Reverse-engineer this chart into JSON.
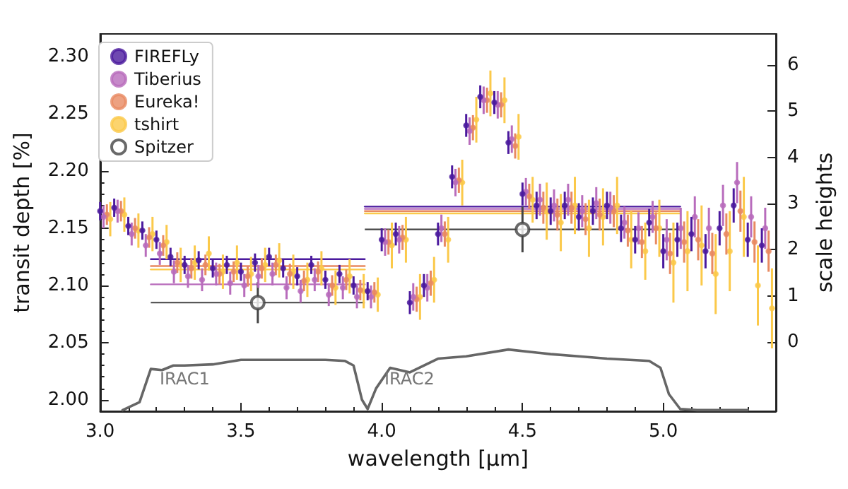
{
  "chart_data": {
    "type": "scatter",
    "xlabel": "wavelength [μm]",
    "ylabel": "transit depth [%]",
    "y2label": "scale heights",
    "xlim": [
      3.0,
      5.4
    ],
    "ylim": [
      1.99,
      2.32
    ],
    "y2lim": [
      -1.5,
      6.67
    ],
    "xticks": [
      {
        "value": 3,
        "label": "3.0"
      },
      {
        "value": 3.5,
        "label": "3.5"
      },
      {
        "value": 4,
        "label": "4.0"
      },
      {
        "value": 4.5,
        "label": "4.5"
      },
      {
        "value": 5,
        "label": "5.0"
      }
    ],
    "yticks": [
      {
        "value": 2,
        "label": "2.00"
      },
      {
        "value": 2.05,
        "label": "2.05"
      },
      {
        "value": 2.1,
        "label": "2.10"
      },
      {
        "value": 2.15,
        "label": "2.15"
      },
      {
        "value": 2.2,
        "label": "2.20"
      },
      {
        "value": 2.25,
        "label": "2.25"
      },
      {
        "value": 2.3,
        "label": "2.30"
      }
    ],
    "y2ticks": [
      0,
      1,
      2,
      3,
      4,
      5,
      6
    ],
    "grid": false,
    "legend": "top left",
    "marker": "circle",
    "series": [
      {
        "name": "FIREFLy",
        "color": "#4b1a9e",
        "x": [
          3.0,
          3.05,
          3.1,
          3.15,
          3.2,
          3.25,
          3.3,
          3.35,
          3.4,
          3.45,
          3.5,
          3.55,
          3.6,
          3.65,
          3.7,
          3.75,
          3.8,
          3.85,
          3.9,
          3.95,
          4.0,
          4.05,
          4.1,
          4.15,
          4.2,
          4.25,
          4.3,
          4.35,
          4.4,
          4.45,
          4.5,
          4.55,
          4.6,
          4.65,
          4.7,
          4.75,
          4.8,
          4.85,
          4.9,
          4.95,
          5.0,
          5.05,
          5.1,
          5.15,
          5.2,
          5.25,
          5.3,
          5.35
        ],
        "values": [
          2.165,
          2.168,
          2.152,
          2.148,
          2.14,
          2.125,
          2.118,
          2.122,
          2.115,
          2.118,
          2.112,
          2.12,
          2.125,
          2.115,
          2.108,
          2.118,
          2.105,
          2.11,
          2.1,
          2.095,
          2.14,
          2.145,
          2.085,
          2.1,
          2.145,
          2.195,
          2.24,
          2.265,
          2.26,
          2.225,
          2.18,
          2.17,
          2.165,
          2.17,
          2.16,
          2.165,
          2.17,
          2.15,
          2.14,
          2.155,
          2.13,
          2.14,
          2.145,
          2.13,
          2.15,
          2.17,
          2.14,
          2.135
        ],
        "errors": [
          0.008,
          0.008,
          0.008,
          0.008,
          0.008,
          0.008,
          0.008,
          0.008,
          0.008,
          0.008,
          0.008,
          0.008,
          0.008,
          0.008,
          0.008,
          0.008,
          0.008,
          0.008,
          0.008,
          0.008,
          0.01,
          0.01,
          0.01,
          0.01,
          0.01,
          0.01,
          0.01,
          0.01,
          0.01,
          0.01,
          0.01,
          0.012,
          0.012,
          0.012,
          0.012,
          0.012,
          0.012,
          0.012,
          0.012,
          0.012,
          0.015,
          0.015,
          0.015,
          0.015,
          0.015,
          0.015,
          0.015,
          0.015
        ]
      },
      {
        "name": "Tiberius",
        "color": "#b86cbc",
        "x": [
          3.012,
          3.062,
          3.112,
          3.162,
          3.212,
          3.262,
          3.312,
          3.362,
          3.412,
          3.462,
          3.512,
          3.562,
          3.612,
          3.662,
          3.712,
          3.762,
          3.812,
          3.862,
          3.912,
          3.962,
          4.012,
          4.062,
          4.112,
          4.162,
          4.212,
          4.262,
          4.312,
          4.362,
          4.412,
          4.462,
          4.512,
          4.562,
          4.612,
          4.662,
          4.712,
          4.762,
          4.812,
          4.862,
          4.912,
          4.962,
          5.012,
          5.062,
          5.112,
          5.162,
          5.212,
          5.262,
          5.312,
          5.362
        ],
        "values": [
          2.16,
          2.165,
          2.145,
          2.135,
          2.128,
          2.112,
          2.108,
          2.105,
          2.11,
          2.102,
          2.1,
          2.108,
          2.11,
          2.098,
          2.095,
          2.105,
          2.092,
          2.098,
          2.09,
          2.09,
          2.138,
          2.14,
          2.09,
          2.098,
          2.15,
          2.19,
          2.235,
          2.262,
          2.258,
          2.228,
          2.182,
          2.175,
          2.17,
          2.175,
          2.165,
          2.172,
          2.168,
          2.155,
          2.15,
          2.16,
          2.14,
          2.15,
          2.16,
          2.15,
          2.17,
          2.19,
          2.16,
          2.15
        ],
        "errors": [
          0.01,
          0.01,
          0.01,
          0.01,
          0.01,
          0.01,
          0.01,
          0.01,
          0.01,
          0.01,
          0.01,
          0.01,
          0.01,
          0.01,
          0.01,
          0.01,
          0.01,
          0.01,
          0.01,
          0.01,
          0.012,
          0.012,
          0.012,
          0.012,
          0.012,
          0.012,
          0.012,
          0.012,
          0.012,
          0.012,
          0.012,
          0.014,
          0.014,
          0.014,
          0.014,
          0.014,
          0.014,
          0.014,
          0.014,
          0.014,
          0.018,
          0.018,
          0.018,
          0.018,
          0.018,
          0.018,
          0.018,
          0.018
        ]
      },
      {
        "name": "Eureka!",
        "color": "#e88a62",
        "x": [
          3.024,
          3.074,
          3.124,
          3.174,
          3.224,
          3.274,
          3.324,
          3.374,
          3.424,
          3.474,
          3.524,
          3.574,
          3.624,
          3.674,
          3.724,
          3.774,
          3.824,
          3.874,
          3.924,
          3.974,
          4.024,
          4.074,
          4.124,
          4.174,
          4.224,
          4.274,
          4.324,
          4.374,
          4.424,
          4.474,
          4.524,
          4.574,
          4.624,
          4.674,
          4.724,
          4.774,
          4.824,
          4.874,
          4.924,
          4.974,
          5.024,
          5.074,
          5.124,
          5.174,
          5.224,
          5.274,
          5.324,
          5.374
        ],
        "values": [
          2.162,
          2.165,
          2.15,
          2.142,
          2.135,
          2.12,
          2.115,
          2.118,
          2.11,
          2.112,
          2.108,
          2.115,
          2.118,
          2.11,
          2.104,
          2.112,
          2.1,
          2.105,
          2.096,
          2.094,
          2.138,
          2.142,
          2.088,
          2.102,
          2.145,
          2.192,
          2.238,
          2.262,
          2.258,
          2.222,
          2.178,
          2.168,
          2.162,
          2.168,
          2.158,
          2.162,
          2.165,
          2.148,
          2.138,
          2.15,
          2.128,
          2.138,
          2.14,
          2.128,
          2.145,
          2.165,
          2.138,
          2.13
        ],
        "errors": [
          0.009,
          0.009,
          0.009,
          0.009,
          0.009,
          0.009,
          0.009,
          0.009,
          0.009,
          0.009,
          0.009,
          0.009,
          0.009,
          0.009,
          0.009,
          0.009,
          0.009,
          0.009,
          0.009,
          0.009,
          0.011,
          0.011,
          0.011,
          0.011,
          0.011,
          0.011,
          0.011,
          0.011,
          0.011,
          0.011,
          0.011,
          0.014,
          0.014,
          0.014,
          0.014,
          0.014,
          0.014,
          0.014,
          0.014,
          0.014,
          0.018,
          0.018,
          0.018,
          0.018,
          0.018,
          0.018,
          0.018,
          0.018
        ]
      },
      {
        "name": "tshirt",
        "color": "#fbc94a",
        "x": [
          3.036,
          3.086,
          3.136,
          3.186,
          3.236,
          3.286,
          3.336,
          3.386,
          3.436,
          3.486,
          3.536,
          3.586,
          3.636,
          3.686,
          3.736,
          3.786,
          3.836,
          3.886,
          3.936,
          3.986,
          4.036,
          4.086,
          4.136,
          4.186,
          4.236,
          4.286,
          4.336,
          4.386,
          4.436,
          4.486,
          4.536,
          4.586,
          4.636,
          4.686,
          4.736,
          4.786,
          4.836,
          4.886,
          4.936,
          4.986,
          5.036,
          5.086,
          5.136,
          5.186,
          5.236,
          5.286,
          5.336,
          5.386
        ],
        "values": [
          2.158,
          2.162,
          2.148,
          2.145,
          2.138,
          2.118,
          2.12,
          2.128,
          2.112,
          2.12,
          2.11,
          2.118,
          2.122,
          2.112,
          2.105,
          2.115,
          2.098,
          2.108,
          2.095,
          2.092,
          2.135,
          2.14,
          2.09,
          2.105,
          2.14,
          2.19,
          2.245,
          2.268,
          2.262,
          2.23,
          2.175,
          2.165,
          2.155,
          2.17,
          2.15,
          2.16,
          2.17,
          2.14,
          2.13,
          2.15,
          2.12,
          2.13,
          2.135,
          2.11,
          2.13,
          2.16,
          2.1,
          2.08
        ],
        "errors": [
          0.015,
          0.015,
          0.015,
          0.015,
          0.015,
          0.015,
          0.015,
          0.015,
          0.015,
          0.015,
          0.015,
          0.015,
          0.015,
          0.015,
          0.015,
          0.015,
          0.015,
          0.015,
          0.015,
          0.015,
          0.02,
          0.02,
          0.02,
          0.02,
          0.02,
          0.02,
          0.02,
          0.02,
          0.02,
          0.02,
          0.02,
          0.025,
          0.025,
          0.025,
          0.025,
          0.025,
          0.025,
          0.025,
          0.025,
          0.025,
          0.035,
          0.035,
          0.035,
          0.035,
          0.035,
          0.035,
          0.035,
          0.035
        ]
      },
      {
        "name": "Spitzer",
        "color": "#444444",
        "x": [
          3.56,
          4.5
        ],
        "values": [
          2.085,
          2.149
        ],
        "errors": [
          0.018,
          0.02
        ],
        "xerrors": [
          0.38,
          0.56
        ]
      },
      {
        "type": "line",
        "color": "#4b1a9e",
        "marker": "none",
        "line_style": "solid",
        "x": [
          3.18,
          3.94
        ],
        "values": [
          2.123,
          2.123
        ]
      },
      {
        "type": "line",
        "color": "#b86cbc",
        "marker": "none",
        "line_style": "solid",
        "x": [
          3.18,
          3.94
        ],
        "values": [
          2.101,
          2.101
        ]
      },
      {
        "type": "line",
        "color": "#e88a62",
        "marker": "none",
        "line_style": "solid",
        "x": [
          3.18,
          3.94
        ],
        "values": [
          2.117,
          2.117
        ]
      },
      {
        "type": "line",
        "color": "#fbc94a",
        "marker": "none",
        "line_style": "solid",
        "x": [
          3.18,
          3.94
        ],
        "values": [
          2.114,
          2.114
        ]
      },
      {
        "type": "line",
        "color": "#4b1a9e",
        "marker": "none",
        "line_style": "solid",
        "x": [
          3.94,
          5.06
        ],
        "values": [
          2.169,
          2.169
        ]
      },
      {
        "type": "line",
        "color": "#b86cbc",
        "marker": "none",
        "line_style": "solid",
        "x": [
          3.94,
          5.06
        ],
        "values": [
          2.167,
          2.167
        ]
      },
      {
        "type": "line",
        "color": "#e88a62",
        "marker": "none",
        "line_style": "solid",
        "x": [
          3.94,
          5.06
        ],
        "values": [
          2.165,
          2.165
        ]
      },
      {
        "type": "line",
        "color": "#fbc94a",
        "marker": "none",
        "line_style": "solid",
        "x": [
          3.94,
          5.06
        ],
        "values": [
          2.163,
          2.163
        ]
      },
      {
        "type": "line",
        "color": "#666666",
        "marker": "none",
        "line_style": "solid",
        "x": [
          3.08,
          3.14,
          3.18,
          3.22,
          3.26,
          3.3,
          3.4,
          3.5,
          3.6,
          3.7,
          3.8,
          3.87,
          3.9,
          3.93,
          3.95,
          3.98,
          4.03,
          4.1,
          4.2,
          4.3,
          4.45,
          4.6,
          4.7,
          4.8,
          4.95,
          4.99,
          5.02,
          5.06,
          5.12,
          5.3
        ],
        "values": [
          1.991,
          1.998,
          2.027,
          2.026,
          2.03,
          2.03,
          2.031,
          2.035,
          2.035,
          2.035,
          2.035,
          2.034,
          2.03,
          2.0,
          1.992,
          2.01,
          2.028,
          2.024,
          2.036,
          2.038,
          2.044,
          2.04,
          2.038,
          2.036,
          2.034,
          2.028,
          2.005,
          1.992,
          1.991,
          1.991
        ]
      }
    ],
    "annotations": [
      "IRAC1",
      "IRAC2"
    ]
  }
}
